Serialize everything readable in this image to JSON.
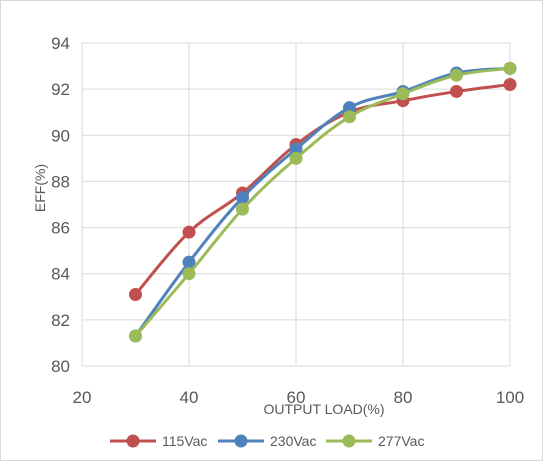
{
  "chart_data": {
    "type": "line",
    "title": "",
    "xlabel": "OUTPUT LOAD(%)",
    "ylabel": "EFF(%)",
    "xlim": [
      20,
      100
    ],
    "ylim": [
      80,
      94
    ],
    "xticks": [
      20,
      40,
      60,
      80,
      100
    ],
    "yticks": [
      80,
      82,
      84,
      86,
      88,
      90,
      92,
      94
    ],
    "grid": true,
    "legend_position": "bottom",
    "x": [
      30,
      40,
      50,
      60,
      70,
      80,
      90,
      100
    ],
    "series": [
      {
        "name": "115Vac",
        "color": "#c0504d",
        "values": [
          83.1,
          85.8,
          87.5,
          89.6,
          91.0,
          91.5,
          91.9,
          92.2
        ]
      },
      {
        "name": "230Vac",
        "color": "#4f81bd",
        "values": [
          81.3,
          84.5,
          87.3,
          89.4,
          91.2,
          91.9,
          92.7,
          92.9
        ]
      },
      {
        "name": "277Vac",
        "color": "#9bbb59",
        "values": [
          81.3,
          84.0,
          86.8,
          89.0,
          90.8,
          91.8,
          92.6,
          92.9
        ]
      }
    ]
  }
}
